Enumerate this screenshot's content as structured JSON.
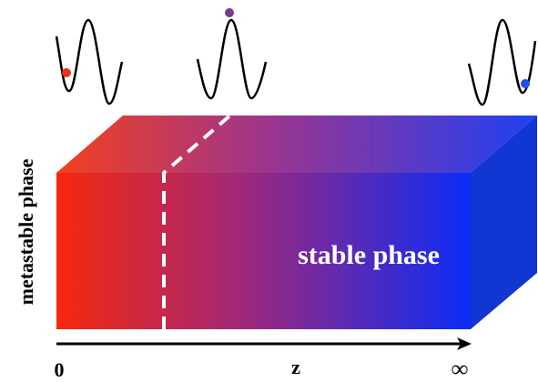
{
  "labels": {
    "side": "metastable phase",
    "front": "stable phase",
    "axis": "z",
    "start": "0",
    "end": "∞"
  }
}
